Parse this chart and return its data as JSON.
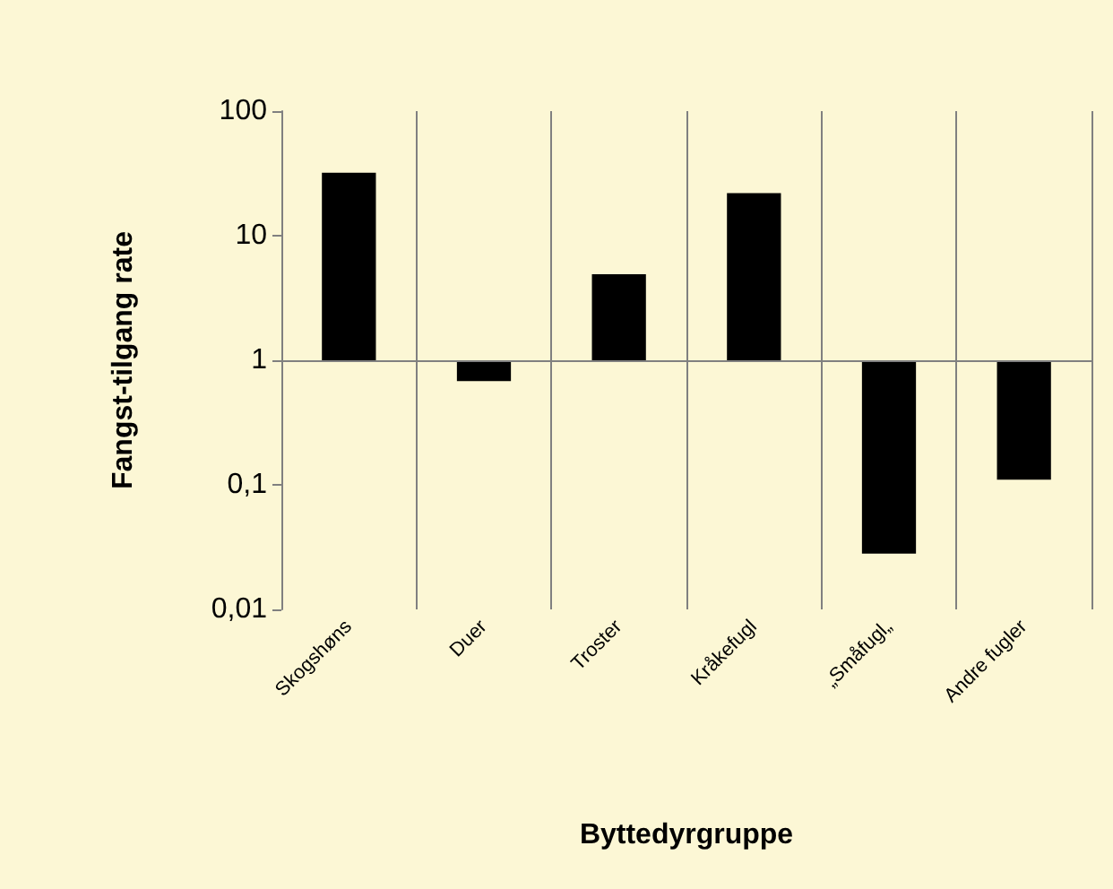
{
  "chart_data": {
    "type": "bar",
    "xlabel": "Byttedyrgruppe",
    "ylabel": "Fangst-tilgang rate",
    "categories": [
      "Skogshøns",
      "Duer",
      "Troster",
      "Kråkefugl",
      "„Småfugl„",
      "Andre fugler"
    ],
    "base": [
      1,
      1,
      1,
      1,
      1,
      1
    ],
    "values": [
      31,
      -0.32,
      3.9,
      21,
      -0.972,
      -0.89
    ],
    "color": "#000000",
    "log": "y",
    "ylim": [
      0.01,
      100
    ],
    "yticks": [
      {
        "value": 0.01,
        "label": "0,01"
      },
      {
        "value": 0.1,
        "label": "0,1"
      },
      1,
      10,
      100
    ],
    "ref_lines": [
      {
        "axis": "y",
        "value": 1,
        "color": "#808080"
      }
    ],
    "grid": "x"
  }
}
